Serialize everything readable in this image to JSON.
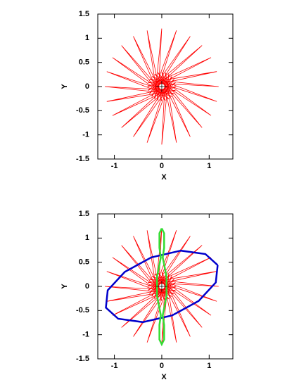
{
  "chart_data": [
    {
      "type": "line",
      "xlabel": "X",
      "ylabel": "Y",
      "xlim": [
        -1.35,
        1.5
      ],
      "ylim": [
        -1.5,
        1.5
      ],
      "xticks": [
        -1,
        0,
        1
      ],
      "yticks": [
        -1.5,
        -1,
        -0.5,
        0,
        0.5,
        1,
        1.5
      ],
      "series": [
        {
          "color": "#ff0000",
          "x": [
            1.2,
            -0.29,
            1.16,
            -0.3,
            1.04,
            -0.29,
            0.85,
            -0.26,
            0.6,
            -0.21,
            0.31,
            -0.15,
            0,
            -0.08,
            -0.31,
            0,
            -0.6,
            0.08,
            -0.85,
            0.15,
            -1.04,
            0.21,
            -1.16,
            0.26,
            -1.2,
            0.29,
            -1.16,
            0.3,
            -1.04,
            0.29,
            -0.85,
            0.26,
            -0.6,
            0.21,
            -0.31,
            0.15,
            0,
            0.08,
            0.31,
            0,
            0.6,
            -0.08,
            0.85,
            -0.15,
            1.04,
            -0.21,
            1.16,
            -0.26,
            1.2
          ],
          "values": [
            0,
            0.08,
            0.31,
            0,
            0.6,
            -0.08,
            0.85,
            -0.15,
            1.04,
            -0.21,
            1.16,
            -0.26,
            1.2,
            -0.29,
            1.16,
            -0.3,
            1.04,
            -0.29,
            0.85,
            -0.26,
            0.6,
            -0.21,
            0.31,
            -0.15,
            0,
            -0.08,
            -0.31,
            0,
            -0.6,
            0.08,
            -0.85,
            0.15,
            -1.04,
            0.21,
            -1.16,
            0.26,
            -1.2,
            0.29,
            -1.16,
            0.3,
            -1.04,
            0.29,
            -0.85,
            0.26,
            -0.6,
            0.21,
            -0.31,
            0.15,
            0
          ]
        }
      ]
    },
    {
      "type": "line",
      "xlabel": "X",
      "ylabel": "Y",
      "xlim": [
        -1.35,
        1.5
      ],
      "ylim": [
        -1.5,
        1.5
      ],
      "xticks": [
        -1,
        0,
        1
      ],
      "yticks": [
        -1.5,
        -1,
        -0.5,
        0,
        0.5,
        1,
        1.5
      ],
      "series": [
        {
          "color": "#ff0000",
          "x": [
            1.2,
            -0.29,
            1.16,
            -0.3,
            1.04,
            -0.29,
            0.85,
            -0.26,
            0.6,
            -0.21,
            0.31,
            -0.15,
            0,
            -0.08,
            -0.31,
            0,
            -0.6,
            0.08,
            -0.85,
            0.15,
            -1.04,
            0.21,
            -1.16,
            0.26,
            -1.2,
            0.29,
            -1.16,
            0.3,
            -1.04,
            0.29,
            -0.85,
            0.26,
            -0.6,
            0.21,
            -0.31,
            0.15,
            0,
            0.08,
            0.31,
            0,
            0.6,
            -0.08,
            0.85,
            -0.15,
            1.04,
            -0.21,
            1.16,
            -0.26,
            1.2
          ],
          "values": [
            0,
            0.08,
            0.31,
            0,
            0.6,
            -0.08,
            0.85,
            -0.15,
            1.04,
            -0.21,
            1.16,
            -0.26,
            1.2,
            -0.29,
            1.16,
            -0.3,
            1.04,
            -0.29,
            0.85,
            -0.26,
            0.6,
            -0.21,
            0.31,
            -0.15,
            0,
            -0.08,
            -0.31,
            0,
            -0.6,
            0.08,
            -0.85,
            0.15,
            -1.04,
            0.21,
            -1.16,
            0.26,
            -1.2,
            0.29,
            -1.16,
            0.3,
            -1.04,
            0.29,
            -0.85,
            0.26,
            -0.6,
            0.21,
            -0.31,
            0.15,
            0
          ]
        },
        {
          "color": "#0000cc",
          "x": [
            1.18,
            0.92,
            0.4,
            -0.22,
            -0.78,
            -1.14,
            -1.18,
            -0.92,
            -0.4,
            0.22,
            0.78,
            1.14,
            1.18
          ],
          "values": [
            0.44,
            0.67,
            0.74,
            0.6,
            0.3,
            -0.08,
            -0.44,
            -0.67,
            -0.74,
            -0.6,
            -0.3,
            0.08,
            0.44
          ]
        },
        {
          "color": "#33dd33",
          "x": [
            0,
            0.05,
            0.05,
            0.02,
            0.1,
            0.1,
            0.02,
            0.05,
            0.05,
            0,
            -0.05,
            -0.05,
            -0.02,
            -0.1,
            -0.1,
            -0.02,
            -0.05,
            -0.05,
            0
          ],
          "values": [
            1.2,
            1.1,
            0.8,
            0.6,
            0.2,
            -0.2,
            -0.6,
            -0.8,
            -1.1,
            -1.2,
            -1.1,
            -0.8,
            -0.6,
            -0.2,
            0.2,
            0.6,
            0.8,
            1.1,
            1.2
          ]
        }
      ]
    }
  ]
}
